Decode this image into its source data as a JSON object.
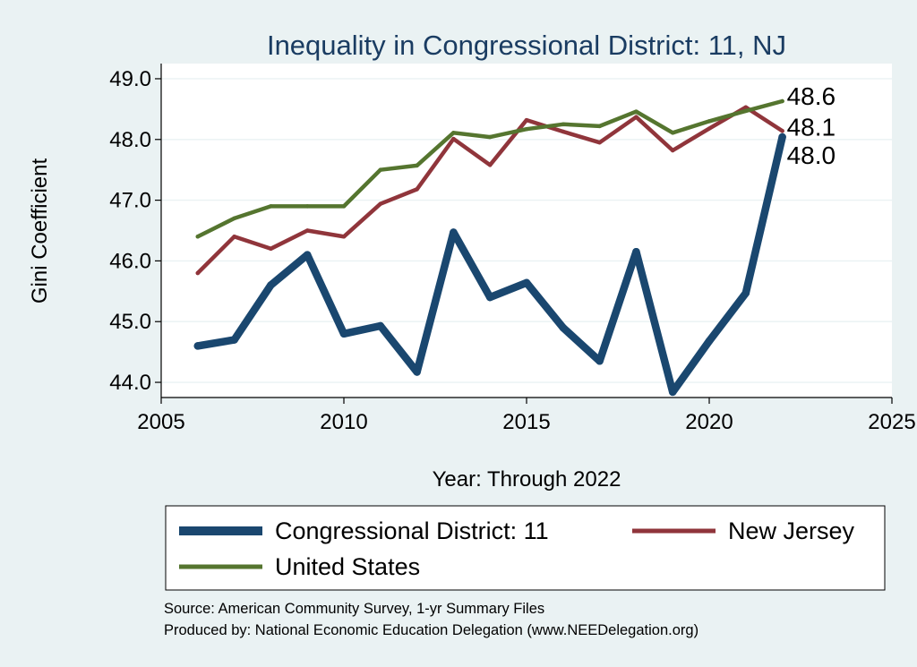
{
  "chart_data": {
    "type": "line",
    "title": "Inequality in Congressional District:  11, NJ",
    "xlabel": "Year: Through 2022",
    "ylabel": "Gini Coefficient",
    "xlim": [
      2005,
      2025
    ],
    "ylim": [
      43.75,
      49.25
    ],
    "x_ticks": [
      "2005",
      "2010",
      "2015",
      "2020",
      "2025"
    ],
    "y_ticks": [
      "44.0",
      "45.0",
      "46.0",
      "47.0",
      "48.0",
      "49.0"
    ],
    "grid": true,
    "legend_position": "bottom",
    "series": [
      {
        "name": "Congressional District:  11",
        "color": "#1a476f",
        "x": [
          2006,
          2007,
          2008,
          2009,
          2010,
          2011,
          2012,
          2013,
          2014,
          2015,
          2016,
          2017,
          2018,
          2019,
          2020,
          2021,
          2022
        ],
        "values": [
          44.6,
          44.7,
          45.6,
          46.1,
          44.8,
          44.93,
          44.17,
          46.47,
          45.4,
          45.64,
          44.9,
          44.35,
          46.15,
          43.84,
          44.68,
          45.47,
          48.04
        ],
        "end_label": "48.0"
      },
      {
        "name": "New Jersey",
        "color": "#90353b",
        "x": [
          2006,
          2007,
          2008,
          2009,
          2010,
          2011,
          2012,
          2013,
          2014,
          2015,
          2016,
          2017,
          2018,
          2019,
          2020,
          2021,
          2022
        ],
        "values": [
          45.8,
          46.4,
          46.2,
          46.5,
          46.4,
          46.94,
          47.18,
          48.01,
          47.58,
          48.32,
          48.13,
          47.95,
          48.37,
          47.82,
          48.18,
          48.53,
          48.14
        ],
        "end_label": "48.1"
      },
      {
        "name": "United States",
        "color": "#55752f",
        "x": [
          2006,
          2007,
          2008,
          2009,
          2010,
          2011,
          2012,
          2013,
          2014,
          2015,
          2016,
          2017,
          2018,
          2019,
          2020,
          2021,
          2022
        ],
        "values": [
          46.4,
          46.7,
          46.9,
          46.9,
          46.9,
          47.5,
          47.57,
          48.11,
          48.04,
          48.17,
          48.25,
          48.22,
          48.46,
          48.11,
          48.3,
          48.47,
          48.63
        ],
        "end_label": "48.6"
      }
    ]
  },
  "source_line_1": "Source: American Community Survey, 1-yr Summary Files",
  "source_line_2": "Produced by: National Economic Education Delegation (www.NEEDelegation.org)"
}
